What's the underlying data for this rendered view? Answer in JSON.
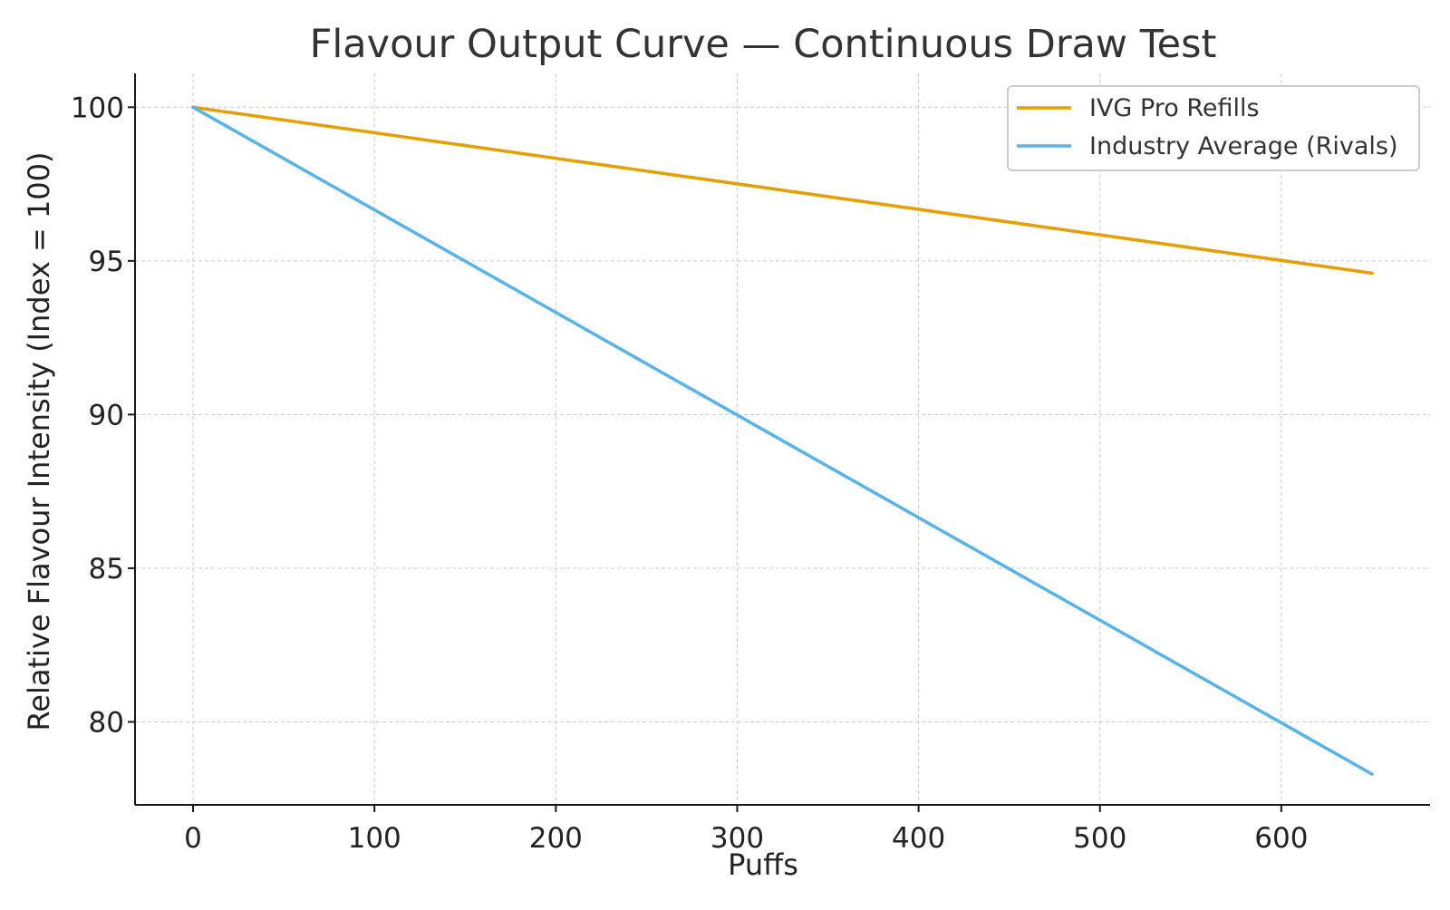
{
  "chart_data": {
    "type": "line",
    "title": "Flavour Output Curve — Continuous Draw Test",
    "xlabel": "Puffs",
    "ylabel": "Relative Flavour Intensity (Index = 100)",
    "xlim": [
      -32,
      682
    ],
    "ylim": [
      77.3,
      101.1
    ],
    "xticks": [
      0,
      100,
      200,
      300,
      400,
      500,
      600
    ],
    "yticks": [
      80,
      85,
      90,
      95,
      100
    ],
    "grid": true,
    "legend_position": "top-right",
    "series": [
      {
        "name": "IVG Pro Refills",
        "color": "#E69F00",
        "x": [
          0,
          650
        ],
        "y": [
          100,
          94.6
        ]
      },
      {
        "name": "Industry Average (Rivals)",
        "color": "#56B4E9",
        "x": [
          0,
          650
        ],
        "y": [
          100,
          78.3
        ]
      }
    ]
  }
}
